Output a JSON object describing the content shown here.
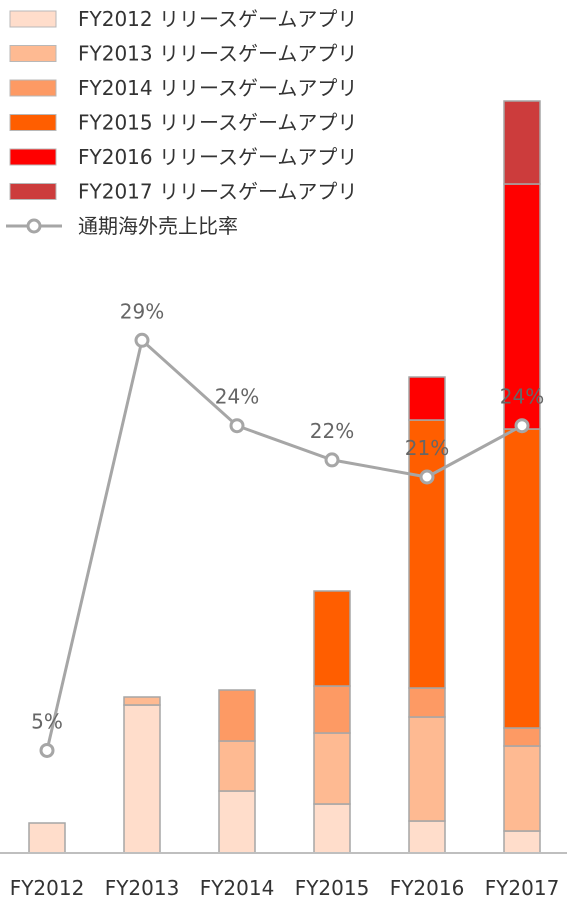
{
  "chart_data": {
    "type": "bar",
    "stacked": true,
    "categories": [
      "FY2012",
      "FY2013",
      "FY2014",
      "FY2015",
      "FY2016",
      "FY2017"
    ],
    "series": [
      {
        "name": "FY2012 リリースゲームアプリ",
        "color": "#FFDDCB",
        "values": [
          30,
          148,
          62,
          49,
          32,
          22
        ]
      },
      {
        "name": "FY2013 リリースゲームアプリ",
        "color": "#FEBA92",
        "values": [
          0,
          8,
          50,
          71,
          104,
          85
        ]
      },
      {
        "name": "FY2014 リリースゲームアプリ",
        "color": "#FD9A64",
        "values": [
          0,
          0,
          51,
          47,
          29,
          18
        ]
      },
      {
        "name": "FY2015 リリースゲームアプリ",
        "color": "#FF5E00",
        "values": [
          0,
          0,
          0,
          95,
          268,
          299
        ]
      },
      {
        "name": "FY2016 リリースゲームアプリ",
        "color": "#FF0000",
        "values": [
          0,
          0,
          0,
          0,
          43,
          245
        ]
      },
      {
        "name": "FY2017 リリースゲームアプリ",
        "color": "#CC3C3C",
        "values": [
          0,
          0,
          0,
          0,
          0,
          83
        ]
      }
    ],
    "line_series": {
      "name": "通期海外売上比率",
      "color": "#A6A6A6",
      "values": [
        5,
        29,
        24,
        22,
        21,
        24
      ],
      "labels": [
        "5%",
        "29%",
        "24%",
        "22%",
        "21%",
        "24%"
      ]
    },
    "ylim": [
      0,
      752
    ],
    "line_ylim": [
      -1,
      43
    ],
    "grid": false,
    "legend_position": "top-left"
  }
}
